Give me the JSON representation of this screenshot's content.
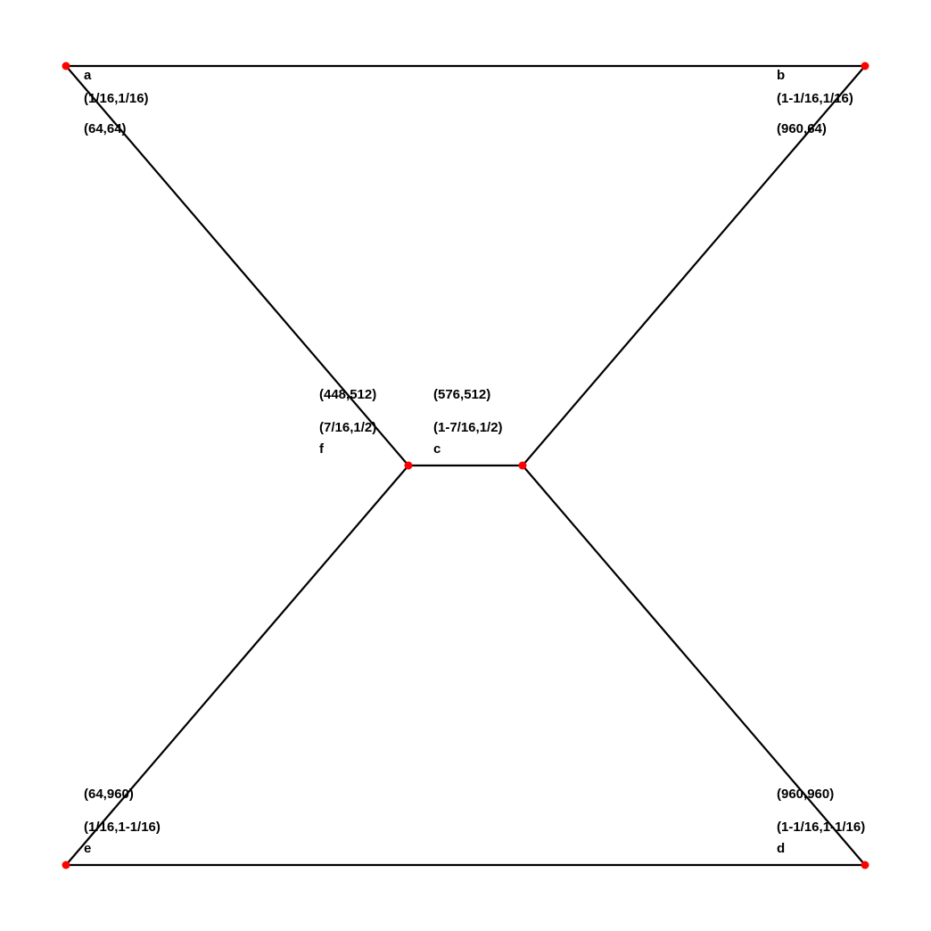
{
  "colors": {
    "background": "#ffffff",
    "edge": "#000000",
    "vertex": "#ff0000",
    "label": "#000000"
  },
  "vertices": [
    {
      "id": "a",
      "name": "a",
      "fraction": "(1/16,1/16)",
      "coords": "(64,64)"
    },
    {
      "id": "b",
      "name": "b",
      "fraction": "(1-1/16,1/16)",
      "coords": "(960,64)"
    },
    {
      "id": "c",
      "name": "c",
      "fraction": "(1-7/16,1/2)",
      "coords": "(576,512)"
    },
    {
      "id": "d",
      "name": "d",
      "fraction": "(1-1/16,1-1/16)",
      "coords": "(960,960)"
    },
    {
      "id": "e",
      "name": "e",
      "fraction": "(1/16,1-1/16)",
      "coords": "(64,960)"
    },
    {
      "id": "f",
      "name": "f",
      "fraction": "(7/16,1/2)",
      "coords": "(448,512)"
    }
  ],
  "edges": [
    [
      "a",
      "b"
    ],
    [
      "a",
      "f"
    ],
    [
      "b",
      "c"
    ],
    [
      "f",
      "c"
    ],
    [
      "f",
      "e"
    ],
    [
      "c",
      "d"
    ],
    [
      "e",
      "d"
    ]
  ]
}
